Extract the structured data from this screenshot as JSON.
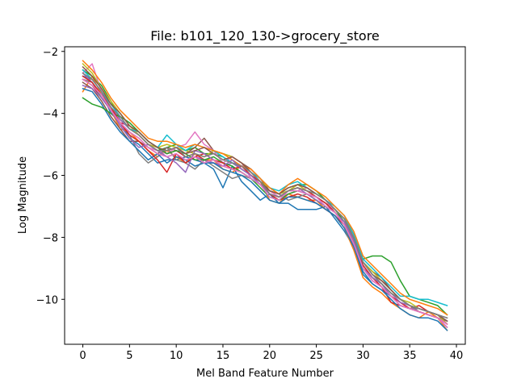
{
  "chart_data": {
    "type": "line",
    "title": "File: b101_120_130->grocery_store",
    "xlabel": "Mel Band Feature Number",
    "ylabel": "Log Magnitude",
    "xlim": [
      -1.95,
      40.95
    ],
    "ylim": [
      -11.45,
      -1.85
    ],
    "xticks": [
      0,
      5,
      10,
      15,
      20,
      25,
      30,
      35,
      40
    ],
    "yticks": [
      -10,
      -8,
      -6,
      -4,
      -2
    ],
    "xtick_labels": [
      "0",
      "5",
      "10",
      "15",
      "20",
      "25",
      "30",
      "35",
      "40"
    ],
    "ytick_labels": [
      "−10",
      "−8",
      "−6",
      "−4",
      "−2"
    ],
    "grid": false,
    "legend": "none",
    "colors": [
      "#1f77b4",
      "#ff7f0e",
      "#2ca02c",
      "#d62728",
      "#9467bd",
      "#8c564b",
      "#e377c2",
      "#7f7f7f",
      "#bcbd22",
      "#17becf"
    ],
    "x": [
      0,
      1,
      2,
      3,
      4,
      5,
      6,
      7,
      8,
      9,
      10,
      11,
      12,
      13,
      14,
      15,
      16,
      17,
      18,
      19,
      20,
      21,
      22,
      23,
      24,
      25,
      26,
      27,
      28,
      29,
      30,
      31,
      32,
      33,
      34,
      35,
      36,
      37,
      38,
      39
    ],
    "series": [
      {
        "values": [
          -2.8,
          -2.9,
          -3.3,
          -4.0,
          -4.3,
          -4.8,
          -5.0,
          -5.3,
          -5.6,
          -5.5,
          -5.5,
          -5.4,
          -5.5,
          -5.6,
          -5.8,
          -6.4,
          -5.7,
          -6.2,
          -6.5,
          -6.8,
          -6.6,
          -6.9,
          -6.9,
          -7.1,
          -7.1,
          -7.1,
          -7.0,
          -7.4,
          -7.8,
          -8.3,
          -9.2,
          -9.5,
          -9.7,
          -9.9,
          -10.2,
          -10.3,
          -10.4,
          -10.5,
          -10.6,
          -10.9
        ]
      },
      {
        "values": [
          -3.3,
          -2.8,
          -3.4,
          -3.9,
          -4.5,
          -4.6,
          -4.9,
          -5.2,
          -5.4,
          -5.2,
          -5.4,
          -5.6,
          -5.3,
          -5.5,
          -5.5,
          -5.8,
          -5.9,
          -5.7,
          -6.0,
          -6.2,
          -6.8,
          -6.9,
          -6.6,
          -6.7,
          -6.8,
          -6.8,
          -7.1,
          -7.3,
          -7.7,
          -8.4,
          -9.3,
          -9.6,
          -9.8,
          -10.1,
          -10.3,
          -10.5,
          -10.6,
          -10.4,
          -10.6,
          -11.0
        ]
      },
      {
        "values": [
          -2.6,
          -2.8,
          -3.1,
          -3.6,
          -4.2,
          -4.5,
          -4.7,
          -5.0,
          -5.2,
          -5.1,
          -5.0,
          -5.2,
          -5.1,
          -5.3,
          -5.3,
          -5.4,
          -5.6,
          -5.8,
          -6.0,
          -6.2,
          -6.5,
          -6.6,
          -6.4,
          -6.3,
          -6.3,
          -6.5,
          -6.8,
          -7.1,
          -7.5,
          -8.0,
          -8.7,
          -8.6,
          -8.6,
          -8.8,
          -9.4,
          -9.9,
          -10.0,
          -10.1,
          -10.2,
          -10.5
        ]
      },
      {
        "values": [
          -2.9,
          -3.1,
          -3.5,
          -3.9,
          -4.3,
          -4.4,
          -4.7,
          -5.0,
          -5.1,
          -5.3,
          -5.2,
          -5.4,
          -5.3,
          -5.5,
          -5.6,
          -5.7,
          -5.8,
          -5.9,
          -6.1,
          -6.3,
          -6.6,
          -6.8,
          -6.7,
          -6.6,
          -6.7,
          -6.9,
          -7.1,
          -7.3,
          -7.6,
          -8.2,
          -9.0,
          -9.4,
          -9.6,
          -10.1,
          -10.2,
          -10.3,
          -10.2,
          -10.4,
          -10.5,
          -10.8
        ]
      },
      {
        "values": [
          -2.7,
          -3.0,
          -3.4,
          -3.8,
          -4.2,
          -4.5,
          -4.7,
          -5.0,
          -5.2,
          -5.4,
          -5.3,
          -5.6,
          -5.4,
          -5.5,
          -5.6,
          -5.7,
          -5.6,
          -5.8,
          -6.0,
          -6.3,
          -6.5,
          -6.6,
          -6.5,
          -6.4,
          -6.6,
          -6.7,
          -6.9,
          -7.2,
          -7.5,
          -8.1,
          -8.8,
          -9.2,
          -9.5,
          -9.9,
          -10.2,
          -10.3,
          -10.3,
          -10.4,
          -10.5,
          -10.7
        ]
      },
      {
        "values": [
          -3.0,
          -3.2,
          -3.6,
          -4.1,
          -4.5,
          -4.9,
          -4.9,
          -5.1,
          -5.3,
          -5.1,
          -5.2,
          -5.3,
          -5.1,
          -4.8,
          -5.2,
          -5.3,
          -5.4,
          -5.6,
          -5.8,
          -6.1,
          -6.5,
          -6.7,
          -6.5,
          -6.4,
          -6.5,
          -6.7,
          -6.9,
          -7.1,
          -7.4,
          -8.0,
          -8.8,
          -9.1,
          -9.3,
          -9.7,
          -10.0,
          -10.2,
          -10.3,
          -10.4,
          -10.5,
          -10.6
        ]
      },
      {
        "values": [
          -2.7,
          -2.4,
          -3.3,
          -3.8,
          -4.4,
          -4.6,
          -4.8,
          -5.1,
          -5.2,
          -5.3,
          -5.1,
          -5.0,
          -4.6,
          -5.0,
          -5.2,
          -5.6,
          -5.4,
          -5.6,
          -6.1,
          -6.3,
          -6.5,
          -6.7,
          -6.6,
          -6.5,
          -6.4,
          -6.6,
          -6.8,
          -7.2,
          -7.5,
          -8.3,
          -9.0,
          -9.4,
          -9.6,
          -9.9,
          -10.1,
          -10.3,
          -10.4,
          -10.5,
          -10.6,
          -10.9
        ]
      },
      {
        "values": [
          -2.9,
          -3.0,
          -3.5,
          -3.9,
          -4.3,
          -4.7,
          -5.3,
          -5.6,
          -5.4,
          -5.1,
          -5.5,
          -5.6,
          -5.8,
          -5.5,
          -5.7,
          -5.9,
          -6.1,
          -6.0,
          -6.1,
          -6.3,
          -6.5,
          -6.6,
          -6.8,
          -6.7,
          -6.6,
          -6.7,
          -6.9,
          -7.2,
          -7.5,
          -8.0,
          -8.9,
          -9.3,
          -9.5,
          -9.8,
          -10.0,
          -10.2,
          -10.4,
          -10.5,
          -10.6,
          -10.7
        ]
      },
      {
        "values": [
          -2.4,
          -2.7,
          -3.2,
          -3.6,
          -4.0,
          -4.4,
          -4.7,
          -5.0,
          -5.1,
          -5.0,
          -5.1,
          -5.2,
          -5.3,
          -5.4,
          -5.2,
          -5.3,
          -5.4,
          -5.6,
          -5.9,
          -6.2,
          -6.4,
          -6.6,
          -6.5,
          -6.3,
          -6.5,
          -6.6,
          -6.8,
          -7.1,
          -7.4,
          -7.9,
          -8.8,
          -9.1,
          -9.4,
          -9.7,
          -10.0,
          -10.1,
          -10.3,
          -10.4,
          -10.5,
          -10.8
        ]
      },
      {
        "values": [
          -2.6,
          -2.9,
          -3.3,
          -3.7,
          -4.1,
          -4.5,
          -4.6,
          -4.9,
          -5.1,
          -4.7,
          -5.0,
          -5.2,
          -5.0,
          -5.1,
          -5.2,
          -5.4,
          -5.6,
          -5.7,
          -5.9,
          -6.1,
          -6.4,
          -6.5,
          -6.3,
          -6.2,
          -6.4,
          -6.6,
          -6.8,
          -7.0,
          -7.3,
          -7.9,
          -8.7,
          -9.0,
          -9.3,
          -9.6,
          -9.9,
          -9.9,
          -10.0,
          -10.0,
          -10.1,
          -10.2
        ]
      },
      {
        "values": [
          -3.2,
          -3.3,
          -3.7,
          -4.2,
          -4.6,
          -4.9,
          -5.2,
          -5.5,
          -5.3,
          -5.6,
          -5.4,
          -5.5,
          -5.7,
          -5.6,
          -5.6,
          -5.8,
          -5.9,
          -6.0,
          -6.2,
          -6.5,
          -6.8,
          -6.9,
          -6.7,
          -6.7,
          -6.8,
          -6.9,
          -7.1,
          -7.3,
          -7.7,
          -8.3,
          -9.1,
          -9.5,
          -9.7,
          -10.0,
          -10.3,
          -10.5,
          -10.6,
          -10.6,
          -10.7,
          -11.0
        ]
      },
      {
        "values": [
          -2.3,
          -2.6,
          -3.0,
          -3.5,
          -3.9,
          -4.2,
          -4.5,
          -4.8,
          -4.9,
          -4.9,
          -5.0,
          -5.1,
          -5.0,
          -5.1,
          -5.2,
          -5.3,
          -5.5,
          -5.7,
          -5.8,
          -6.1,
          -6.4,
          -6.6,
          -6.3,
          -6.1,
          -6.3,
          -6.5,
          -6.7,
          -7.0,
          -7.3,
          -7.8,
          -8.6,
          -8.9,
          -9.2,
          -9.5,
          -9.8,
          -10.0,
          -10.1,
          -10.2,
          -10.3,
          -10.5
        ]
      },
      {
        "values": [
          -3.5,
          -3.7,
          -3.8,
          -4.0,
          -4.1,
          -4.3,
          -4.6,
          -4.9,
          -5.1,
          -5.3,
          -5.2,
          -5.3,
          -5.5,
          -5.5,
          -5.4,
          -5.6,
          -5.7,
          -5.9,
          -6.1,
          -6.4,
          -6.7,
          -6.8,
          -6.6,
          -6.5,
          -6.6,
          -6.8,
          -7.0,
          -7.2,
          -7.5,
          -8.1,
          -9.0,
          -9.3,
          -9.5,
          -9.8,
          -10.0,
          -10.2,
          -10.3,
          -10.4,
          -10.5,
          -10.7
        ]
      },
      {
        "values": [
          -2.8,
          -3.0,
          -3.4,
          -3.8,
          -4.3,
          -4.7,
          -4.9,
          -5.2,
          -5.5,
          -5.9,
          -5.3,
          -5.6,
          -5.4,
          -5.3,
          -5.5,
          -5.6,
          -5.8,
          -5.7,
          -6.0,
          -6.2,
          -6.6,
          -6.7,
          -6.5,
          -6.4,
          -6.5,
          -6.7,
          -6.9,
          -7.2,
          -7.6,
          -8.2,
          -8.9,
          -9.3,
          -9.6,
          -9.9,
          -10.1,
          -10.3,
          -10.4,
          -10.5,
          -10.6,
          -10.8
        ]
      },
      {
        "values": [
          -3.1,
          -3.2,
          -3.5,
          -3.9,
          -4.4,
          -4.8,
          -5.1,
          -5.0,
          -5.2,
          -5.4,
          -5.6,
          -5.9,
          -5.2,
          -5.3,
          -5.5,
          -5.7,
          -5.5,
          -5.8,
          -6.0,
          -6.3,
          -6.6,
          -6.7,
          -6.5,
          -6.5,
          -6.6,
          -6.8,
          -7.0,
          -7.2,
          -7.5,
          -8.1,
          -9.0,
          -9.3,
          -9.5,
          -9.8,
          -10.1,
          -10.2,
          -10.3,
          -10.4,
          -10.5,
          -10.7
        ]
      },
      {
        "values": [
          -2.5,
          -2.8,
          -3.2,
          -3.7,
          -4.0,
          -4.4,
          -4.6,
          -4.9,
          -5.1,
          -5.2,
          -5.1,
          -5.3,
          -5.2,
          -5.1,
          -5.3,
          -5.5,
          -5.4,
          -5.6,
          -5.9,
          -6.2,
          -6.5,
          -6.6,
          -6.4,
          -6.3,
          -6.4,
          -6.6,
          -6.8,
          -7.1,
          -7.4,
          -8.0,
          -8.8,
          -9.2,
          -9.4,
          -9.7,
          -10.0,
          -10.2,
          -10.3,
          -10.4,
          -10.5,
          -10.7
        ]
      },
      {
        "values": [
          -2.9,
          -3.1,
          -3.4,
          -3.9,
          -4.3,
          -4.6,
          -4.8,
          -5.1,
          -5.3,
          -5.4,
          -5.3,
          -5.5,
          -5.4,
          -5.6,
          -5.5,
          -5.7,
          -5.8,
          -5.9,
          -6.1,
          -6.3,
          -6.7,
          -6.8,
          -6.5,
          -6.5,
          -6.6,
          -6.7,
          -7.0,
          -7.2,
          -7.6,
          -8.2,
          -9.0,
          -9.4,
          -9.6,
          -9.9,
          -10.2,
          -10.3,
          -10.4,
          -10.5,
          -10.6,
          -10.8
        ]
      },
      {
        "values": [
          -2.7,
          -2.9,
          -3.3,
          -3.8,
          -4.1,
          -4.5,
          -4.7,
          -5.0,
          -5.2,
          -5.2,
          -5.1,
          -5.4,
          -5.3,
          -5.4,
          -5.3,
          -5.5,
          -5.6,
          -5.7,
          -5.9,
          -6.2,
          -6.6,
          -6.7,
          -6.5,
          -6.4,
          -6.5,
          -6.6,
          -6.8,
          -7.1,
          -7.4,
          -8.0,
          -8.8,
          -9.2,
          -9.5,
          -9.8,
          -10.0,
          -10.2,
          -10.3,
          -10.4,
          -10.5,
          -10.6
        ]
      }
    ]
  }
}
